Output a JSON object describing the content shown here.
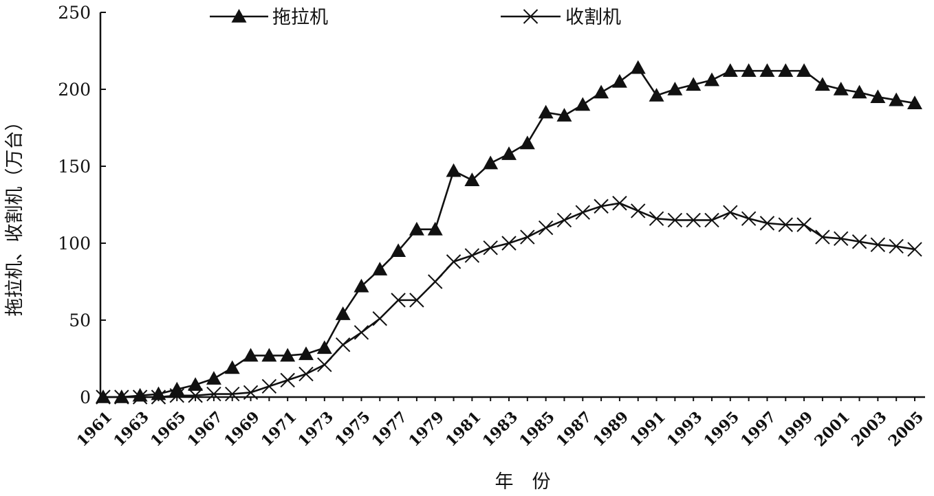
{
  "chart_data": {
    "type": "line",
    "xlabel": "年　份",
    "ylabel": "拖拉机、收割机（万台）",
    "ylim": [
      0,
      250
    ],
    "xlim": [
      1961,
      2005
    ],
    "yticks": [
      0,
      50,
      100,
      150,
      200,
      250
    ],
    "xticks": [
      "1961",
      "1963",
      "1965",
      "1967",
      "1969",
      "1971",
      "1973",
      "1975",
      "1977",
      "1979",
      "1981",
      "1983",
      "1985",
      "1987",
      "1989",
      "1991",
      "1993",
      "1995",
      "1997",
      "1999",
      "2001",
      "2003",
      "2005"
    ],
    "grid": false,
    "legend_position": "top",
    "x": [
      1961,
      1962,
      1963,
      1964,
      1965,
      1966,
      1967,
      1968,
      1969,
      1970,
      1971,
      1972,
      1973,
      1974,
      1975,
      1976,
      1977,
      1978,
      1979,
      1980,
      1981,
      1982,
      1983,
      1984,
      1985,
      1986,
      1987,
      1988,
      1989,
      1990,
      1991,
      1992,
      1993,
      1994,
      1995,
      1996,
      1997,
      1998,
      1999,
      2000,
      2001,
      2002,
      2003,
      2004,
      2005
    ],
    "series": [
      {
        "name": "拖拉机",
        "marker": "triangle",
        "color": "#111111",
        "values": [
          0,
          0,
          1,
          2,
          5,
          8,
          12,
          19,
          27,
          27,
          27,
          28,
          32,
          54,
          72,
          83,
          95,
          109,
          109,
          147,
          141,
          152,
          158,
          165,
          185,
          183,
          190,
          198,
          205,
          214,
          196,
          200,
          203,
          206,
          212,
          212,
          212,
          212,
          212,
          203,
          200,
          198,
          195,
          193,
          191
        ]
      },
      {
        "name": "收割机",
        "marker": "x",
        "color": "#111111",
        "values": [
          0,
          0,
          0,
          0,
          1,
          1,
          2,
          2,
          3,
          7,
          11,
          15,
          21,
          34,
          42,
          51,
          63,
          63,
          75,
          88,
          92,
          97,
          100,
          104,
          110,
          115,
          120,
          124,
          126,
          121,
          116,
          115,
          115,
          115,
          120,
          116,
          113,
          112,
          112,
          104,
          103,
          101,
          99,
          98,
          96
        ]
      }
    ]
  }
}
